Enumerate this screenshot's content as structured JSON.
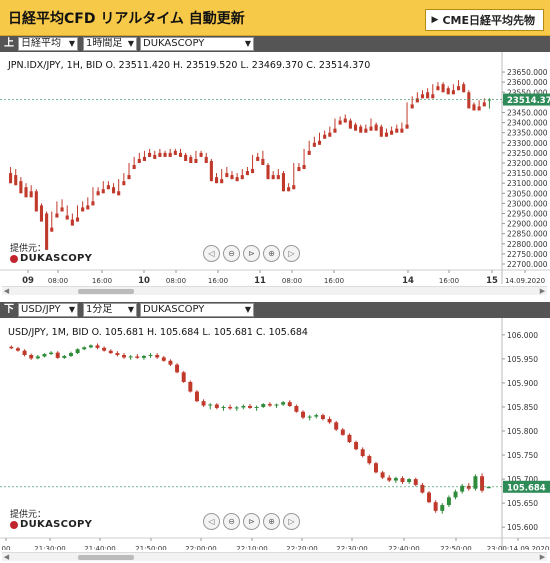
{
  "header": {
    "title": "日経平均CFD リアルタイム 自動更新",
    "cme_button": "CME日経平均先物",
    "cme_arrow": "▶"
  },
  "top": {
    "toolbar_label": "上",
    "instrument_select": "日経平均",
    "timeframe_select": "1時間足",
    "provider_select": "DUKASCOPY",
    "ohlc": "JPN.IDX/JPY, 1H, BID   O. 23511.420 H. 23519.520 L. 23469.370 C. 23514.370",
    "price_tag": "23514.370",
    "provider_label": "提供元：",
    "brand": "DUKASCOPY",
    "x_ticks_bold": [
      "09",
      "10",
      "11",
      "14",
      "15"
    ],
    "x_ticks": [
      "08:00",
      "16:00",
      "08:00",
      "16:00",
      "08:00",
      "16:00",
      "16:00",
      "14.09.2020"
    ],
    "y_ticks": [
      "23650.000",
      "23600.000",
      "23550.000",
      "23500.000",
      "23450.000",
      "23400.000",
      "23350.000",
      "23300.000",
      "23250.000",
      "23200.000",
      "23150.000",
      "23100.000",
      "23050.000",
      "23000.000",
      "22950.000",
      "22900.000",
      "22850.000",
      "22800.000",
      "22750.000",
      "22700.000"
    ]
  },
  "bottom": {
    "toolbar_label": "下",
    "instrument_select": "USD/JPY",
    "timeframe_select": "1分足",
    "provider_select": "DUKASCOPY",
    "ohlc": "USD/JPY, 1M, BID   O. 105.681 H. 105.684 L. 105.681 C. 105.684",
    "price_tag": "105.684",
    "provider_label": "提供元：",
    "brand": "DUKASCOPY",
    "x_ticks": [
      "00",
      "21:30:00",
      "21:40:00",
      "21:50:00",
      "22:00:00",
      "22:10:00",
      "22:20:00",
      "22:30:00",
      "22:40:00",
      "22:50:00",
      "23:00:14.09.2020"
    ],
    "y_ticks": [
      "106.000",
      "105.950",
      "105.900",
      "105.850",
      "105.800",
      "105.750",
      "105.700",
      "105.650",
      "105.600"
    ]
  },
  "nav_icons": [
    "scroll-left-icon",
    "zoom-out-icon",
    "reset-icon",
    "zoom-in-icon",
    "scroll-right-icon"
  ],
  "colors": {
    "up": "#2e8b3a",
    "down": "#c0392b",
    "header": "#f7c948",
    "toolbar": "#555555",
    "tag": "#2e8b57"
  },
  "chart_data": [
    {
      "type": "candlestick",
      "ylim": [
        22700,
        23680
      ],
      "candles": [
        [
          23150,
          23180,
          23120,
          23100
        ],
        [
          23140,
          23170,
          23120,
          23090
        ],
        [
          23110,
          23130,
          23070,
          23050
        ],
        [
          23080,
          23100,
          23040,
          23030
        ],
        [
          23060,
          23090,
          23040,
          23030
        ],
        [
          23060,
          23070,
          22980,
          22960
        ],
        [
          22990,
          23000,
          22940,
          22910
        ],
        [
          22950,
          22960,
          22880,
          22770
        ],
        [
          22880,
          22960,
          22870,
          22860
        ],
        [
          22950,
          23010,
          22940,
          22930
        ],
        [
          22980,
          23020,
          22970,
          22960
        ],
        [
          22940,
          22990,
          22930,
          22920
        ],
        [
          22920,
          22950,
          22900,
          22890
        ],
        [
          22930,
          22990,
          22920,
          22910
        ],
        [
          22980,
          23010,
          22970,
          22960
        ],
        [
          22990,
          23030,
          22980,
          22970
        ],
        [
          23010,
          23080,
          23000,
          22990
        ],
        [
          23060,
          23080,
          23050,
          23040
        ],
        [
          23070,
          23110,
          23060,
          23050
        ],
        [
          23090,
          23110,
          23080,
          23070
        ],
        [
          23080,
          23100,
          23060,
          23050
        ],
        [
          23060,
          23120,
          23050,
          23040
        ],
        [
          23110,
          23150,
          23100,
          23090
        ],
        [
          23140,
          23200,
          23130,
          23120
        ],
        [
          23190,
          23230,
          23180,
          23170
        ],
        [
          23220,
          23250,
          23210,
          23200
        ],
        [
          23230,
          23260,
          23220,
          23210
        ],
        [
          23250,
          23270,
          23240,
          23230
        ],
        [
          23240,
          23260,
          23230,
          23220
        ],
        [
          23250,
          23270,
          23240,
          23230
        ],
        [
          23250,
          23260,
          23240,
          23230
        ],
        [
          23250,
          23270,
          23240,
          23230
        ],
        [
          23260,
          23270,
          23250,
          23240
        ],
        [
          23250,
          23270,
          23240,
          23230
        ],
        [
          23240,
          23250,
          23220,
          23210
        ],
        [
          23230,
          23240,
          23210,
          23200
        ],
        [
          23220,
          23260,
          23210,
          23200
        ],
        [
          23250,
          23260,
          23240,
          23230
        ],
        [
          23230,
          23250,
          23210,
          23200
        ],
        [
          23210,
          23220,
          23130,
          23110
        ],
        [
          23130,
          23150,
          23110,
          23100
        ],
        [
          23120,
          23170,
          23110,
          23100
        ],
        [
          23150,
          23180,
          23140,
          23130
        ],
        [
          23140,
          23160,
          23130,
          23120
        ],
        [
          23130,
          23150,
          23120,
          23110
        ],
        [
          23140,
          23170,
          23130,
          23120
        ],
        [
          23160,
          23180,
          23150,
          23140
        ],
        [
          23170,
          23240,
          23160,
          23150
        ],
        [
          23230,
          23250,
          23220,
          23210
        ],
        [
          23220,
          23260,
          23200,
          23190
        ],
        [
          23190,
          23200,
          23140,
          23120
        ],
        [
          23140,
          23160,
          23130,
          23120
        ],
        [
          23140,
          23170,
          23130,
          23120
        ],
        [
          23150,
          23160,
          23080,
          23060
        ],
        [
          23080,
          23100,
          23070,
          23060
        ],
        [
          23090,
          23200,
          23080,
          23070
        ],
        [
          23180,
          23200,
          23170,
          23160
        ],
        [
          23190,
          23270,
          23180,
          23170
        ],
        [
          23260,
          23310,
          23250,
          23240
        ],
        [
          23300,
          23330,
          23290,
          23280
        ],
        [
          23310,
          23350,
          23300,
          23290
        ],
        [
          23340,
          23360,
          23330,
          23320
        ],
        [
          23350,
          23380,
          23340,
          23330
        ],
        [
          23370,
          23420,
          23360,
          23350
        ],
        [
          23410,
          23430,
          23400,
          23390
        ],
        [
          23420,
          23440,
          23410,
          23400
        ],
        [
          23410,
          23420,
          23380,
          23370
        ],
        [
          23390,
          23400,
          23370,
          23360
        ],
        [
          23380,
          23390,
          23360,
          23350
        ],
        [
          23370,
          23390,
          23360,
          23350
        ],
        [
          23380,
          23420,
          23370,
          23360
        ],
        [
          23390,
          23400,
          23370,
          23360
        ],
        [
          23380,
          23390,
          23340,
          23330
        ],
        [
          23350,
          23370,
          23340,
          23330
        ],
        [
          23360,
          23380,
          23350,
          23340
        ],
        [
          23370,
          23390,
          23360,
          23350
        ],
        [
          23370,
          23400,
          23360,
          23350
        ],
        [
          23390,
          23500,
          23380,
          23370
        ],
        [
          23490,
          23530,
          23480,
          23470
        ],
        [
          23520,
          23550,
          23510,
          23500
        ],
        [
          23540,
          23560,
          23530,
          23520
        ],
        [
          23550,
          23570,
          23530,
          23520
        ],
        [
          23540,
          23590,
          23530,
          23520
        ],
        [
          23580,
          23600,
          23570,
          23560
        ],
        [
          23590,
          23600,
          23560,
          23550
        ],
        [
          23570,
          23580,
          23550,
          23540
        ],
        [
          23560,
          23590,
          23550,
          23540
        ],
        [
          23580,
          23610,
          23570,
          23560
        ],
        [
          23590,
          23600,
          23560,
          23550
        ],
        [
          23550,
          23560,
          23480,
          23470
        ],
        [
          23490,
          23500,
          23470,
          23460
        ],
        [
          23480,
          23510,
          23470,
          23460
        ],
        [
          23500,
          23520,
          23490,
          23480
        ],
        [
          23511,
          23520,
          23469,
          23514
        ]
      ]
    },
    {
      "type": "candlestick",
      "ylim": [
        105.59,
        106.01
      ],
      "candles": [
        [
          105.975,
          105.978,
          105.97,
          105.972
        ],
        [
          105.972,
          105.975,
          105.965,
          105.967
        ],
        [
          105.967,
          105.97,
          105.955,
          105.958
        ],
        [
          105.958,
          105.961,
          105.948,
          105.951
        ],
        [
          105.951,
          105.958,
          105.949,
          105.955
        ],
        [
          105.955,
          105.962,
          105.953,
          105.96
        ],
        [
          105.96,
          105.966,
          105.958,
          105.963
        ],
        [
          105.963,
          105.966,
          105.95,
          105.952
        ],
        [
          105.952,
          105.958,
          105.95,
          105.956
        ],
        [
          105.956,
          105.965,
          105.954,
          105.962
        ],
        [
          105.962,
          105.972,
          105.96,
          105.97
        ],
        [
          105.97,
          105.976,
          105.968,
          105.974
        ],
        [
          105.974,
          105.98,
          105.972,
          105.978
        ],
        [
          105.978,
          105.982,
          105.97,
          105.973
        ],
        [
          105.973,
          105.976,
          105.965,
          105.967
        ],
        [
          105.967,
          105.97,
          105.96,
          105.962
        ],
        [
          105.962,
          105.966,
          105.955,
          105.958
        ],
        [
          105.958,
          105.962,
          105.95,
          105.953
        ],
        [
          105.953,
          105.958,
          105.948,
          105.955
        ],
        [
          105.955,
          105.96,
          105.95,
          105.952
        ],
        [
          105.952,
          105.958,
          105.948,
          105.956
        ],
        [
          105.956,
          105.962,
          105.952,
          105.958
        ],
        [
          105.958,
          105.962,
          105.95,
          105.953
        ],
        [
          105.953,
          105.956,
          105.944,
          105.946
        ],
        [
          105.946,
          105.949,
          105.935,
          105.938
        ],
        [
          105.938,
          105.941,
          105.92,
          105.922
        ],
        [
          105.922,
          105.925,
          105.9,
          105.902
        ],
        [
          105.902,
          105.905,
          105.88,
          105.882
        ],
        [
          105.882,
          105.885,
          105.86,
          105.862
        ],
        [
          105.862,
          105.866,
          105.85,
          105.853
        ],
        [
          105.853,
          105.858,
          105.845,
          105.855
        ],
        [
          105.855,
          105.858,
          105.845,
          105.848
        ],
        [
          105.848,
          105.853,
          105.842,
          105.85
        ],
        [
          105.85,
          105.855,
          105.844,
          105.847
        ],
        [
          105.847,
          105.852,
          105.842,
          105.849
        ],
        [
          105.849,
          105.855,
          105.845,
          105.852
        ],
        [
          105.852,
          105.856,
          105.846,
          105.848
        ],
        [
          105.848,
          105.853,
          105.842,
          105.85
        ],
        [
          105.85,
          105.858,
          105.848,
          105.856
        ],
        [
          105.856,
          105.86,
          105.85,
          105.853
        ],
        [
          105.853,
          105.857,
          105.848,
          105.855
        ],
        [
          105.855,
          105.862,
          105.852,
          105.86
        ],
        [
          105.86,
          105.864,
          105.85,
          105.852
        ],
        [
          105.852,
          105.855,
          105.838,
          105.84
        ],
        [
          105.84,
          105.843,
          105.825,
          105.828
        ],
        [
          105.828,
          105.833,
          105.822,
          105.83
        ],
        [
          105.83,
          105.836,
          105.826,
          105.833
        ],
        [
          105.833,
          105.836,
          105.822,
          105.825
        ],
        [
          105.825,
          105.83,
          105.815,
          105.818
        ],
        [
          105.818,
          105.821,
          105.8,
          105.803
        ],
        [
          105.803,
          105.806,
          105.79,
          105.792
        ],
        [
          105.792,
          105.795,
          105.775,
          105.777
        ],
        [
          105.777,
          105.78,
          105.76,
          105.762
        ],
        [
          105.762,
          105.766,
          105.745,
          105.748
        ],
        [
          105.748,
          105.751,
          105.73,
          105.733
        ],
        [
          105.733,
          105.736,
          105.712,
          105.714
        ],
        [
          105.714,
          105.717,
          105.7,
          105.703
        ],
        [
          105.703,
          105.708,
          105.694,
          105.697
        ],
        [
          105.697,
          105.705,
          105.692,
          105.702
        ],
        [
          105.702,
          105.706,
          105.69,
          105.694
        ],
        [
          105.694,
          105.702,
          105.69,
          105.7
        ],
        [
          105.7,
          105.703,
          105.685,
          105.688
        ],
        [
          105.688,
          105.692,
          105.67,
          105.672
        ],
        [
          105.672,
          105.675,
          105.65,
          105.652
        ],
        [
          105.652,
          105.656,
          105.63,
          105.634
        ],
        [
          105.634,
          105.65,
          105.628,
          105.646
        ],
        [
          105.646,
          105.666,
          105.642,
          105.662
        ],
        [
          105.662,
          105.678,
          105.658,
          105.674
        ],
        [
          105.674,
          105.69,
          105.67,
          105.686
        ],
        [
          105.686,
          105.692,
          105.676,
          105.68
        ],
        [
          105.68,
          105.71,
          105.676,
          105.706
        ],
        [
          105.706,
          105.712,
          105.672,
          105.676
        ],
        [
          105.681,
          105.684,
          105.681,
          105.684
        ]
      ]
    }
  ]
}
